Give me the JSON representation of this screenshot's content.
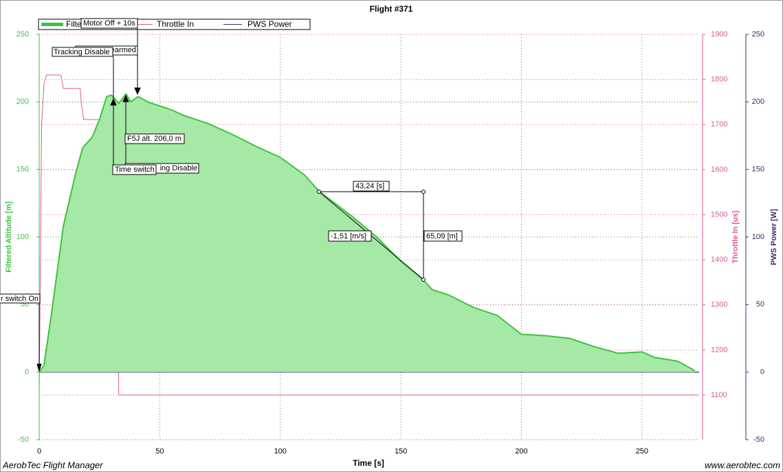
{
  "chart_data": {
    "type": "line",
    "title": "Flight #371",
    "x_label": "Time [s]",
    "y_label": "Filtered Altitude [m]",
    "y2_label": "Throttle In [us]",
    "y3_label": "PWS Power [W]",
    "xlim": [
      0,
      273.7
    ],
    "xticks": [
      0,
      50,
      100,
      150,
      200,
      250
    ],
    "ylim": [
      -50,
      250
    ],
    "yticks": [
      -50,
      0,
      50,
      100,
      150,
      200,
      250
    ],
    "y2lim": [
      1001,
      1900
    ],
    "y2ticks": [
      1100,
      1200,
      1300,
      1400,
      1500,
      1600,
      1700,
      1800,
      1900
    ],
    "y3lim": [
      -50,
      250
    ],
    "y3ticks": [
      -50,
      0,
      50,
      100,
      150,
      200,
      250
    ],
    "grid": true,
    "series": [
      {
        "name": "Filtered Altitude",
        "color": "#3ec23e",
        "fill": "#a6e8a6",
        "x": [
          0,
          2,
          5,
          10,
          15,
          18,
          22,
          25,
          28,
          30,
          33,
          36,
          38,
          41,
          45,
          50,
          55,
          60,
          65,
          70,
          80,
          90,
          100,
          110,
          116,
          130,
          140,
          150,
          159,
          163,
          170,
          180,
          190,
          200,
          210,
          220,
          230,
          240,
          250,
          255,
          265,
          272
        ],
        "values": [
          0,
          5,
          42,
          108,
          146,
          166,
          174,
          187,
          204,
          205,
          199,
          206,
          200,
          204,
          200,
          197,
          194,
          190,
          187,
          184,
          176,
          167,
          159,
          146,
          134,
          115,
          100,
          82,
          69,
          61,
          57,
          48,
          42,
          28,
          27,
          25,
          19,
          14,
          15,
          11,
          8,
          1
        ]
      },
      {
        "name": "Throttle In",
        "color": "#e0569a",
        "axis": "y2",
        "x": [
          0,
          0.5,
          1,
          2,
          3,
          9,
          10,
          17,
          17.5,
          18.5,
          32.5,
          33,
          273.7
        ],
        "values": [
          1100,
          1400,
          1700,
          1790,
          1810,
          1810,
          1780,
          1780,
          1747,
          1711,
          1711,
          1100,
          1100
        ]
      },
      {
        "name": "PWS Power",
        "color": "#303070",
        "axis": "y3",
        "x": [
          0,
          273.7
        ],
        "values": [
          0,
          0
        ]
      }
    ],
    "annotations": [
      "Motor Off + 10s",
      "earmed",
      "Tracking Disable",
      "F5J alt. 206,0 m",
      "ing Disable",
      "Time switch",
      "r switch On",
      "43,24 [s]",
      "-1,51 [m/s]",
      "65,09 [m]"
    ],
    "footer_left": "AerobTec Flight Manager",
    "footer_right": "www.aerobtec.com"
  }
}
